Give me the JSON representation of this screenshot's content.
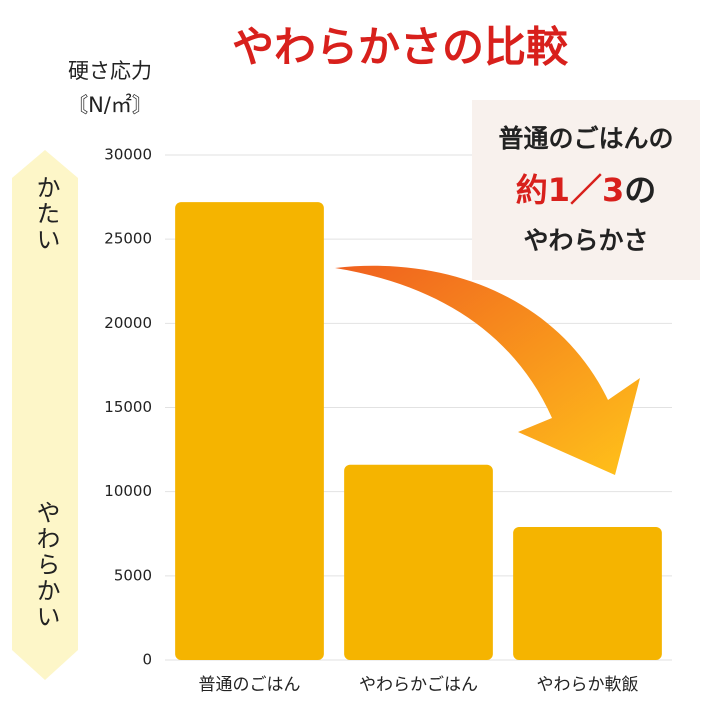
{
  "chart_data": {
    "type": "bar",
    "title": "やわらかさの比較",
    "y_axis_label": "硬さ応力",
    "y_axis_unit": "〘N/㎡〙",
    "categories": [
      "普通のごはん",
      "やわらかごはん",
      "やわらか軟飯"
    ],
    "values": [
      27200,
      11600,
      7900
    ],
    "color": "#f5b400",
    "ylim": [
      0,
      30000
    ],
    "yticks": [
      0,
      5000,
      10000,
      15000,
      20000,
      25000,
      30000
    ],
    "grid": true,
    "scale_labels": {
      "top": "かたい",
      "bottom": "やわらかい"
    },
    "callout": {
      "line1": "普通のごはんの",
      "highlight": "約1／3",
      "line2_rest": "の",
      "line3": "やわらかさ"
    }
  }
}
